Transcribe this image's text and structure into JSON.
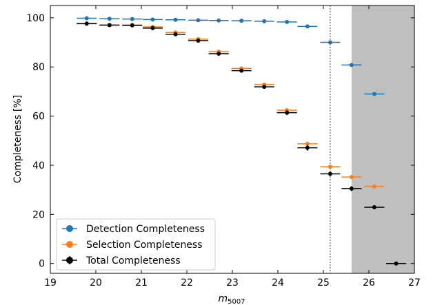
{
  "chart_data": {
    "type": "scatter",
    "xlabel": "m",
    "xlabel_sub": "5007",
    "ylabel": "Completeness [%]",
    "xlim": [
      19,
      27
    ],
    "ylim": [
      -4,
      105
    ],
    "xticks": [
      19,
      20,
      21,
      22,
      23,
      24,
      25,
      26,
      27
    ],
    "yticks": [
      0,
      20,
      40,
      60,
      80,
      100
    ],
    "vline": 25.15,
    "shaded_region": [
      25.62,
      27
    ],
    "legend_position": "lower-left",
    "series": [
      {
        "name": "Detection Completeness",
        "color": "#1f77b4",
        "marker": "circle",
        "x": [
          19.8,
          20.3,
          20.8,
          21.25,
          21.75,
          22.25,
          22.7,
          23.2,
          23.7,
          24.2,
          24.65,
          25.15,
          25.62,
          26.12
        ],
        "y": [
          99.8,
          99.6,
          99.5,
          99.3,
          99.2,
          99.0,
          98.9,
          98.8,
          98.6,
          98.3,
          96.5,
          90.0,
          80.8,
          69.0
        ]
      },
      {
        "name": "Selection Completeness",
        "color": "#ff7f0e",
        "marker": "circle",
        "x": [
          19.8,
          20.3,
          20.8,
          21.25,
          21.75,
          22.25,
          22.7,
          23.2,
          23.7,
          24.2,
          24.65,
          25.15,
          25.62,
          26.12
        ],
        "y": [
          97.7,
          97.1,
          97.1,
          96.3,
          94.0,
          91.3,
          86.2,
          79.4,
          72.8,
          62.4,
          48.7,
          39.4,
          35.2,
          31.3
        ]
      },
      {
        "name": "Total Completeness",
        "color": "#000000",
        "marker": "circle",
        "x": [
          19.8,
          20.3,
          20.8,
          21.25,
          21.75,
          22.25,
          22.7,
          23.2,
          23.7,
          24.2,
          24.65,
          25.15,
          25.62,
          26.12,
          26.6
        ],
        "y": [
          97.6,
          97.0,
          96.9,
          95.8,
          93.3,
          90.7,
          85.4,
          78.5,
          71.9,
          61.4,
          47.1,
          36.5,
          30.5,
          22.9,
          0.0
        ],
        "xerr": 0.22,
        "yerr": [
          0.3,
          0.3,
          0.3,
          0.4,
          0.5,
          0.6,
          0.7,
          0.8,
          0.8,
          1.0,
          1.2,
          0.9,
          1.0,
          0.8,
          0.3
        ]
      }
    ],
    "xerr_default": 0.22
  }
}
